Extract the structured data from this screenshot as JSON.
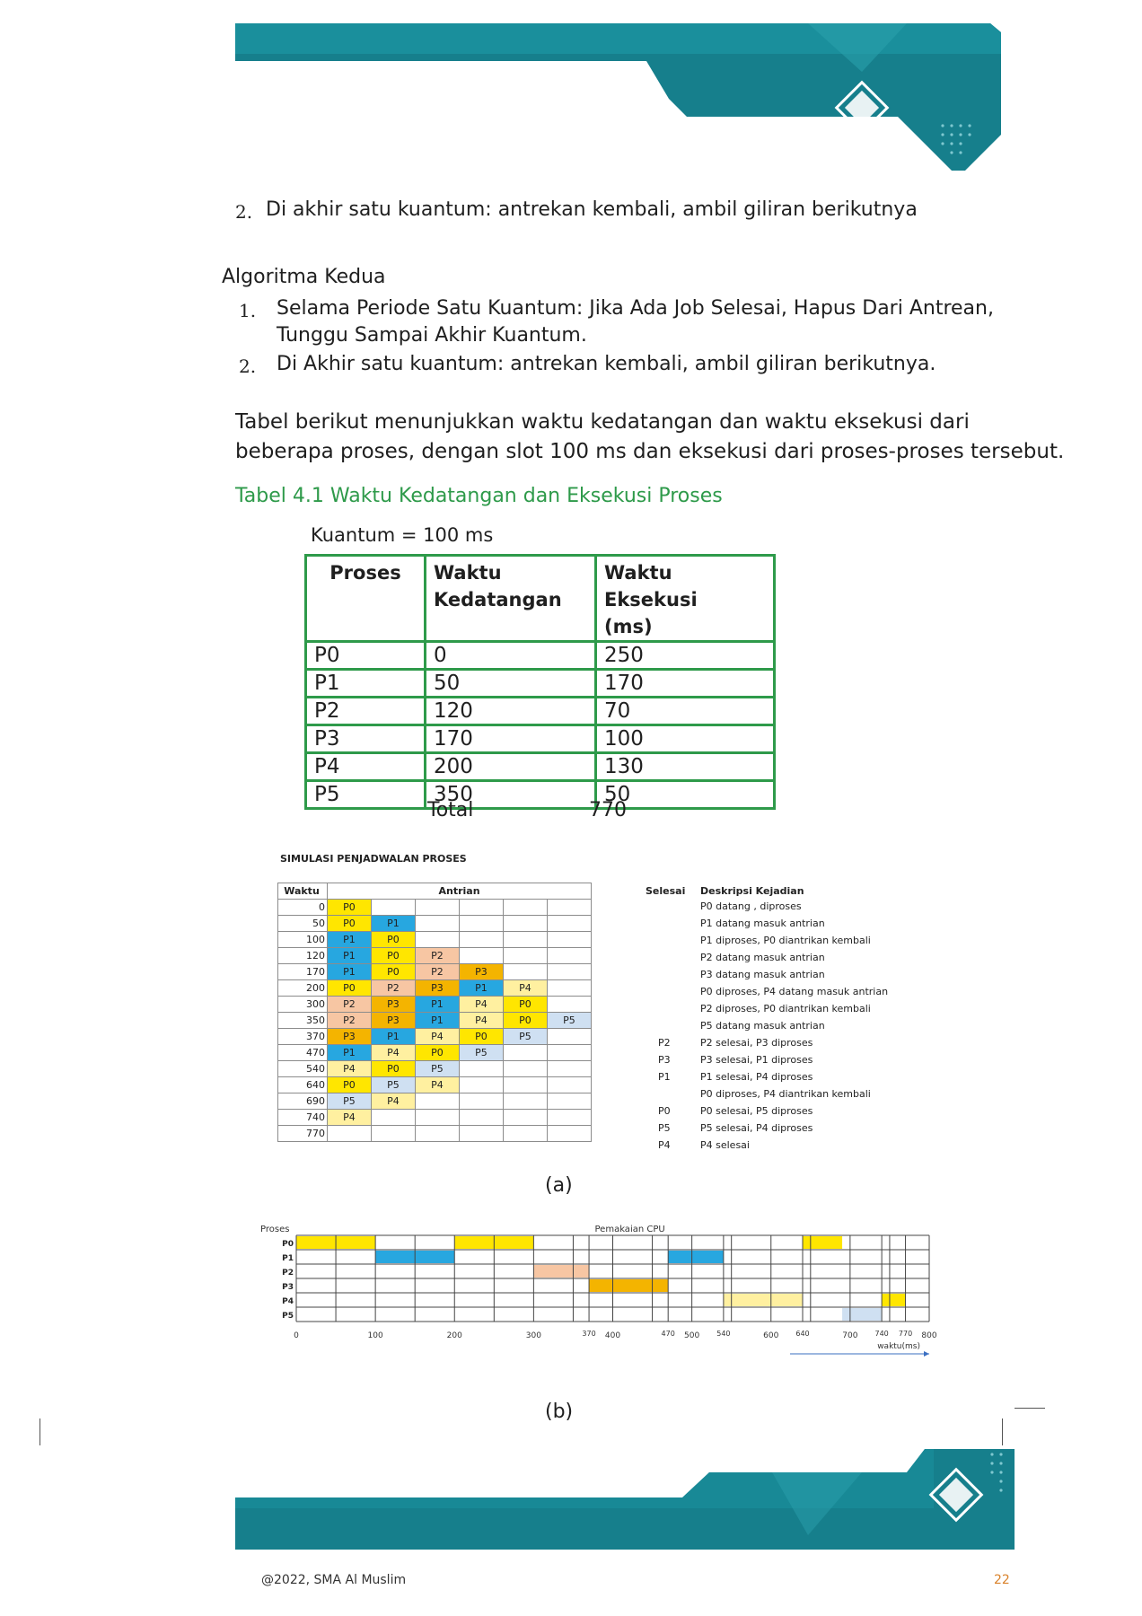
{
  "list_a": {
    "number": "2.",
    "text": "Di akhir satu kuantum: antrekan kembali, ambil giliran berikutnya"
  },
  "algorithm2": {
    "heading": "Algoritma Kedua",
    "items": [
      {
        "number": "1.",
        "line1": "Selama Periode Satu Kuantum: Jika Ada Job Selesai, Hapus Dari Antrean,",
        "line2": "Tunggu Sampai Akhir Kuantum."
      },
      {
        "number": "2.",
        "line1": "Di Akhir satu kuantum: antrekan kembali, ambil giliran berikutnya."
      }
    ]
  },
  "paragraph": {
    "line1": "Tabel berikut menunjukkan waktu kedatangan dan waktu eksekusi dari",
    "line2": "beberapa proses, dengan slot 100 ms dan eksekusi dari proses-proses tersebut."
  },
  "table_caption": "Tabel 4.1 Waktu Kedatangan dan Eksekusi Proses",
  "quantum_label": "Kuantum = 100 ms",
  "process_table": {
    "headers": {
      "c1": "Proses",
      "c2a": "Waktu",
      "c2b": "Kedatangan",
      "c3a": "Waktu Eksekusi",
      "c3b": "(ms)"
    },
    "rows": [
      {
        "p": "P0",
        "arr": "0",
        "exec": "250"
      },
      {
        "p": "P1",
        "arr": "50",
        "exec": "170"
      },
      {
        "p": "P2",
        "arr": "120",
        "exec": "70"
      },
      {
        "p": "P3",
        "arr": "170",
        "exec": "100"
      },
      {
        "p": "P4",
        "arr": "200",
        "exec": "130"
      },
      {
        "p": "P5",
        "arr": "350",
        "exec": "50"
      }
    ],
    "total_label": "Total",
    "total_value": "770"
  },
  "simulation": {
    "title": "SIMULASI PENJADWALAN PROSES",
    "h_waktu": "Waktu",
    "h_antrian": "Antrian",
    "h_selesai": "Selesai",
    "h_deskripsi": "Deskripsi Kejadian",
    "rows": [
      {
        "t": "0",
        "q": [
          "P0"
        ],
        "done": "",
        "desc": "P0 datang , diproses"
      },
      {
        "t": "50",
        "q": [
          "P0",
          "P1"
        ],
        "done": "",
        "desc": "P1 datang masuk antrian"
      },
      {
        "t": "100",
        "q": [
          "P1",
          "P0"
        ],
        "done": "",
        "desc": "P1 diproses, P0 diantrikan kembali"
      },
      {
        "t": "120",
        "q": [
          "P1",
          "P0",
          "P2"
        ],
        "done": "",
        "desc": "P2 datang masuk antrian"
      },
      {
        "t": "170",
        "q": [
          "P1",
          "P0",
          "P2",
          "P3"
        ],
        "done": "",
        "desc": "P3 datang masuk antrian"
      },
      {
        "t": "200",
        "q": [
          "P0",
          "P2",
          "P3",
          "P1",
          "P4"
        ],
        "done": "",
        "desc": "P0 diproses, P4 datang masuk antrian"
      },
      {
        "t": "300",
        "q": [
          "P2",
          "P3",
          "P1",
          "P4",
          "P0"
        ],
        "done": "",
        "desc": "P2 diproses, P0 diantrikan kembali"
      },
      {
        "t": "350",
        "q": [
          "P2",
          "P3",
          "P1",
          "P4",
          "P0",
          "P5"
        ],
        "done": "",
        "desc": "P5 datang masuk antrian"
      },
      {
        "t": "370",
        "q": [
          "P3",
          "P1",
          "P4",
          "P0",
          "P5"
        ],
        "done": "P2",
        "desc": "P2 selesai, P3 diproses"
      },
      {
        "t": "470",
        "q": [
          "P1",
          "P4",
          "P0",
          "P5"
        ],
        "done": "P3",
        "desc": "P3 selesai, P1 diproses"
      },
      {
        "t": "540",
        "q": [
          "P4",
          "P0",
          "P5"
        ],
        "done": "P1",
        "desc": "P1 selesai, P4 diproses"
      },
      {
        "t": "640",
        "q": [
          "P0",
          "P5",
          "P4"
        ],
        "done": "",
        "desc": "P0 diproses, P4 diantrikan kembali"
      },
      {
        "t": "690",
        "q": [
          "P5",
          "P4"
        ],
        "done": "P0",
        "desc": "P0 selesai, P5 diproses"
      },
      {
        "t": "740",
        "q": [
          "P4"
        ],
        "done": "P5",
        "desc": "P5 selesai, P4 diproses"
      },
      {
        "t": "770",
        "q": [],
        "done": "P4",
        "desc": "P4 selesai"
      }
    ],
    "caption": "(a)"
  },
  "gantt": {
    "title": "Pemakaian CPU",
    "ylabel": "Proses",
    "xlabel": "waktu(ms)",
    "processes": [
      "P0",
      "P1",
      "P2",
      "P3",
      "P4",
      "P5"
    ],
    "ticks": [
      "0",
      "100",
      "200",
      "300",
      "370",
      "400",
      "470",
      "500",
      "540",
      "600",
      "640",
      "700",
      "740",
      "770",
      "800"
    ],
    "tick_values": [
      0,
      100,
      200,
      300,
      370,
      400,
      470,
      500,
      540,
      600,
      640,
      700,
      740,
      770,
      800
    ],
    "bars": [
      {
        "p": 0,
        "start": 0,
        "end": 100,
        "color": "#ffe600"
      },
      {
        "p": 1,
        "start": 100,
        "end": 200,
        "color": "#27a7e0"
      },
      {
        "p": 0,
        "start": 200,
        "end": 300,
        "color": "#ffe600"
      },
      {
        "p": 2,
        "start": 300,
        "end": 370,
        "color": "#f7c6a3"
      },
      {
        "p": 3,
        "start": 370,
        "end": 470,
        "color": "#f4b400"
      },
      {
        "p": 1,
        "start": 470,
        "end": 540,
        "color": "#27a7e0"
      },
      {
        "p": 4,
        "start": 540,
        "end": 640,
        "color": "#fff0a0"
      },
      {
        "p": 0,
        "start": 640,
        "end": 690,
        "color": "#ffe600"
      },
      {
        "p": 5,
        "start": 690,
        "end": 740,
        "color": "#cfe0f2"
      },
      {
        "p": 4,
        "start": 740,
        "end": 770,
        "color": "#ffe600"
      }
    ],
    "caption": "(b)"
  },
  "footer": {
    "copyright": "@2022, SMA Al Muslim",
    "page": "22"
  },
  "colors": {
    "teal": "#167f8c",
    "green": "#2e9a4a",
    "orange": "#d9822b"
  }
}
